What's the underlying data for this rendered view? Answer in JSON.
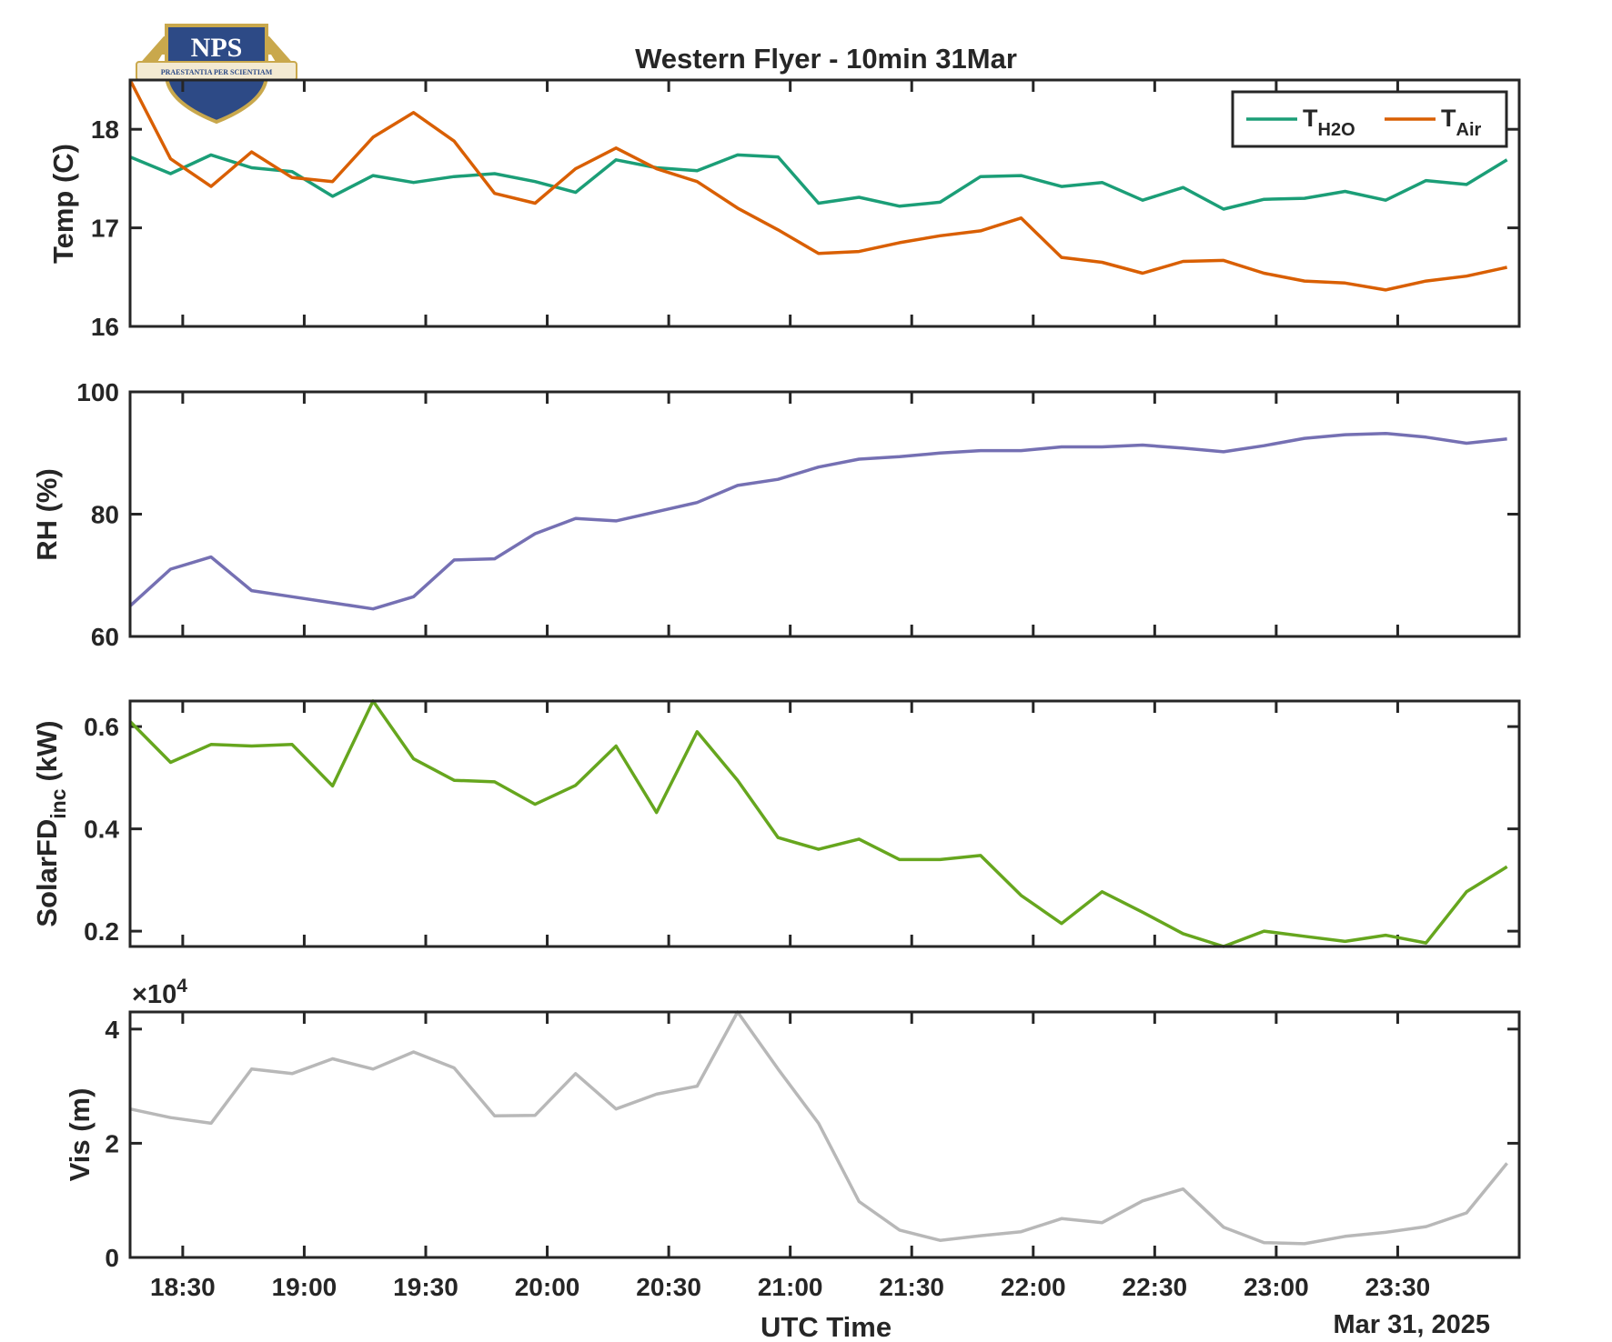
{
  "colors": {
    "t_h2o": "#1b9e77",
    "t_air": "#d95f02",
    "rh": "#7570b3",
    "solar": "#66a61e",
    "vis": "#b8b8b8",
    "axis": "#262626"
  },
  "logo": {
    "text": "NPS",
    "motto": "PRAESTANTIA PER SCIENTIAM",
    "colors": {
      "shield": "#2d4a86",
      "gold": "#c9a84c"
    }
  },
  "chart_data": {
    "title": "Western Flyer - 10min 31Mar",
    "xlabel": "UTC Time",
    "date_label": "Mar 31, 2025",
    "x_unit": "minutes after 18:00 UTC",
    "xlim": [
      17,
      360
    ],
    "xticks": [
      30,
      60,
      90,
      120,
      150,
      180,
      210,
      240,
      270,
      300,
      330
    ],
    "xtick_labels": [
      "18:30",
      "19:00",
      "19:30",
      "20:00",
      "20:30",
      "21:00",
      "21:30",
      "22:00",
      "22:30",
      "23:00",
      "23:30"
    ],
    "x": [
      17,
      27,
      37,
      47,
      57,
      67,
      77,
      87,
      97,
      107,
      117,
      127,
      137,
      147,
      157,
      167,
      177,
      187,
      197,
      207,
      217,
      227,
      237,
      247,
      257,
      267,
      277,
      287,
      297,
      307,
      317,
      327,
      337,
      347,
      357
    ],
    "panels": [
      {
        "type": "line",
        "ylabel": "Temp (C)",
        "ylim": [
          16,
          18.5
        ],
        "yticks": [
          16,
          17,
          18
        ],
        "ytick_labels": [
          "16",
          "17",
          "18"
        ],
        "legend": {
          "position": "top-right"
        },
        "series": [
          {
            "name": "T",
            "name_sub": "H2O",
            "color_key": "t_h2o",
            "values": [
              17.72,
              17.55,
              17.74,
              17.61,
              17.57,
              17.32,
              17.53,
              17.46,
              17.52,
              17.55,
              17.47,
              17.36,
              17.69,
              17.61,
              17.58,
              17.74,
              17.72,
              17.25,
              17.31,
              17.22,
              17.26,
              17.52,
              17.53,
              17.42,
              17.46,
              17.28,
              17.41,
              17.19,
              17.29,
              17.3,
              17.37,
              17.28,
              17.48,
              17.44,
              17.69
            ]
          },
          {
            "name": "T",
            "name_sub": "Air",
            "color_key": "t_air",
            "values": [
              18.5,
              17.7,
              17.42,
              17.77,
              17.51,
              17.47,
              17.92,
              18.17,
              17.88,
              17.35,
              17.25,
              17.6,
              17.81,
              17.6,
              17.47,
              17.2,
              16.98,
              16.74,
              16.76,
              16.85,
              16.92,
              16.97,
              17.1,
              16.7,
              16.65,
              16.54,
              16.66,
              16.67,
              16.54,
              16.46,
              16.44,
              16.37,
              16.46,
              16.51,
              16.6
            ]
          }
        ]
      },
      {
        "type": "line",
        "ylabel": "RH (%)",
        "ylim": [
          60,
          100
        ],
        "yticks": [
          60,
          80,
          100
        ],
        "ytick_labels": [
          "60",
          "80",
          "100"
        ],
        "series": [
          {
            "color_key": "rh",
            "values": [
              65,
              71,
              73,
              67.5,
              66.5,
              65.5,
              64.5,
              66.5,
              72.5,
              72.7,
              76.8,
              79.3,
              78.9,
              80.4,
              81.9,
              84.7,
              85.7,
              87.7,
              89,
              89.4,
              90,
              90.4,
              90.4,
              91,
              91,
              91.3,
              90.8,
              90.2,
              91.2,
              92.4,
              93,
              93.2,
              92.6,
              91.6,
              92.3
            ]
          }
        ]
      },
      {
        "type": "line",
        "ylabel": "SolarFD",
        "ylabel_sub": "inc",
        "ylabel_suffix": "(kW)",
        "ylim": [
          0.17,
          0.65
        ],
        "yticks": [
          0.2,
          0.4,
          0.6
        ],
        "ytick_labels": [
          "0.2",
          "0.4",
          "0.6"
        ],
        "series": [
          {
            "color_key": "solar",
            "values": [
              0.61,
              0.53,
              0.565,
              0.562,
              0.565,
              0.484,
              0.65,
              0.537,
              0.495,
              0.492,
              0.448,
              0.485,
              0.562,
              0.432,
              0.59,
              0.495,
              0.383,
              0.36,
              0.38,
              0.34,
              0.34,
              0.348,
              0.27,
              0.215,
              0.277,
              0.237,
              0.195,
              0.17,
              0.2,
              0.19,
              0.18,
              0.192,
              0.177,
              0.277,
              0.326
            ]
          }
        ]
      },
      {
        "type": "line",
        "ylabel": "Vis (m)",
        "ylim": [
          0,
          43000
        ],
        "yticks": [
          0,
          20000,
          40000
        ],
        "ytick_labels": [
          "0",
          "2",
          "4"
        ],
        "exponent_label": "×10",
        "exponent_power": "4",
        "series": [
          {
            "color_key": "vis",
            "values": [
              26000,
              24500,
              23500,
              33000,
              32200,
              34800,
              33000,
              36000,
              33200,
              24800,
              24900,
              32200,
              26000,
              28600,
              30000,
              43300,
              33000,
              23500,
              9800,
              4800,
              3000,
              3800,
              4500,
              6800,
              6100,
              9900,
              12000,
              5300,
              2600,
              2400,
              3700,
              4400,
              5400,
              7800,
              16500
            ]
          }
        ]
      }
    ]
  }
}
